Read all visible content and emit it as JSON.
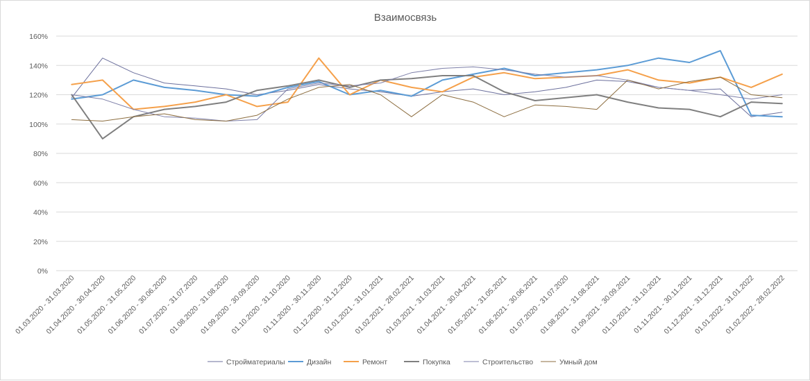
{
  "chart_data": {
    "type": "line",
    "title": "Взаимосвязь",
    "xlabel": "",
    "ylabel": "",
    "ylim": [
      0,
      160
    ],
    "yticks": [
      "0%",
      "20%",
      "40%",
      "60%",
      "80%",
      "100%",
      "120%",
      "140%",
      "160%"
    ],
    "grid": true,
    "legend_position": "bottom",
    "categories": [
      "01.03.2020 - 31.03.2020",
      "01.04.2020 - 30.04.2020",
      "01.05.2020 - 31.05.2020",
      "01.06.2020 - 30.06.2020",
      "01.07.2020 - 31.07.2020",
      "01.08.2020 - 31.08.2020",
      "01.09.2020 - 30.09.2020",
      "01.10.2020 - 31.10.2020",
      "01.11.2020 - 30.11.2020",
      "01.12.2020 - 31.12.2020",
      "01.01.2021 - 31.01.2021",
      "01.02.2021 - 28.02.2021",
      "01.03.2021 - 31.03.2021",
      "01.04.2021 - 30.04.2021",
      "01.05.2021 - 31.05.2021",
      "01.06.2021 - 30.06.2021",
      "01.07.2020 - 31.07.2020",
      "01.08.2021 - 31.08.2021",
      "01.09.2021 - 30.09.2021",
      "01.10.2021 - 31.10.2021",
      "01.11.2021 - 30.11.2021",
      "01.12.2021 - 31.12.2021",
      "01.01.2022 - 31.01.2022",
      "01.02.2022 - 28.02.2022"
    ],
    "series": [
      {
        "name": "Стройматериалы",
        "color": "#6b6f9c",
        "width": 1,
        "values": [
          118,
          145,
          135,
          128,
          126,
          124,
          120,
          123,
          127,
          124,
          122,
          119,
          122,
          124,
          120,
          122,
          125,
          130,
          129,
          125,
          123,
          124,
          105,
          108
        ]
      },
      {
        "name": "Дизайн",
        "color": "#5b9bd5",
        "width": 2,
        "values": [
          117,
          120,
          130,
          125,
          123,
          120,
          119,
          125,
          129,
          120,
          123,
          119,
          130,
          134,
          138,
          133,
          135,
          137,
          140,
          145,
          142,
          150,
          106,
          105
        ]
      },
      {
        "name": "Ремонт",
        "color": "#f5a04a",
        "width": 2,
        "values": [
          127,
          130,
          110,
          112,
          115,
          120,
          112,
          115,
          145,
          120,
          130,
          125,
          122,
          132,
          135,
          131,
          132,
          133,
          137,
          130,
          128,
          132,
          125,
          134
        ]
      },
      {
        "name": "Покупка",
        "color": "#7f7f7f",
        "width": 2,
        "values": [
          120,
          90,
          105,
          110,
          112,
          115,
          123,
          126,
          130,
          125,
          130,
          131,
          133,
          133,
          122,
          116,
          118,
          120,
          115,
          111,
          110,
          105,
          115,
          114
        ]
      },
      {
        "name": "Строительство",
        "color": "#7d7fa8",
        "width": 1,
        "values": [
          120,
          117,
          110,
          105,
          104,
          102,
          103,
          124,
          128,
          126,
          128,
          135,
          138,
          139,
          137,
          134,
          132,
          133,
          130,
          125,
          123,
          120,
          117,
          120
        ]
      },
      {
        "name": "Умный дом",
        "color": "#8c6d3f",
        "width": 1,
        "values": [
          103,
          102,
          105,
          107,
          103,
          102,
          106,
          117,
          125,
          127,
          120,
          105,
          120,
          115,
          105,
          113,
          112,
          110,
          130,
          124,
          129,
          132,
          120,
          118
        ]
      }
    ]
  }
}
